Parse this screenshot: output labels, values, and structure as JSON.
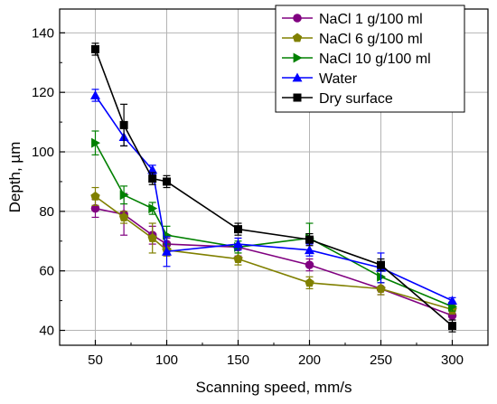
{
  "chart_data": {
    "type": "line",
    "title": "",
    "xlabel": "Scanning speed, mm/s",
    "ylabel": "Depth, µm",
    "xlim": [
      25,
      325
    ],
    "ylim": [
      35,
      148
    ],
    "xticks": [
      50,
      100,
      150,
      200,
      250,
      300
    ],
    "yticks": [
      40,
      60,
      80,
      100,
      120,
      140
    ],
    "grid": true,
    "legend_position": "top-right",
    "x": [
      50,
      70,
      90,
      100,
      150,
      200,
      250,
      300
    ],
    "series": [
      {
        "name": "NaCl 1 g/100 ml",
        "color": "#800080",
        "marker": "circle",
        "values": [
          81,
          79,
          72,
          69,
          68,
          62,
          54,
          45
        ],
        "errors": [
          3,
          7,
          3,
          2,
          3,
          2,
          2,
          1.5
        ]
      },
      {
        "name": "NaCl 6 g/100 ml",
        "color": "#808000",
        "marker": "pentagon",
        "values": [
          85,
          78,
          71,
          67,
          64,
          56,
          54,
          47
        ],
        "errors": [
          3,
          2,
          5,
          2,
          2,
          2,
          2,
          1.5
        ]
      },
      {
        "name": "NaCl 10 g/100 ml",
        "color": "#008000",
        "marker": "triangle-right",
        "values": [
          103,
          85.5,
          81,
          72,
          68,
          71,
          58,
          48
        ],
        "errors": [
          4,
          3,
          2,
          3,
          2,
          5,
          2,
          1.5
        ]
      },
      {
        "name": "Water",
        "color": "#0000ff",
        "marker": "triangle-up",
        "values": [
          119,
          105,
          94,
          66.5,
          69,
          67,
          61,
          50
        ],
        "errors": [
          2,
          3,
          1.5,
          5,
          2,
          2,
          5,
          1
        ]
      },
      {
        "name": "Dry surface",
        "color": "#000000",
        "marker": "square",
        "values": [
          134.5,
          109,
          91,
          90,
          74,
          70.5,
          62,
          41.5
        ],
        "errors": [
          2,
          7,
          2,
          2,
          2,
          2,
          2,
          2
        ]
      }
    ]
  }
}
